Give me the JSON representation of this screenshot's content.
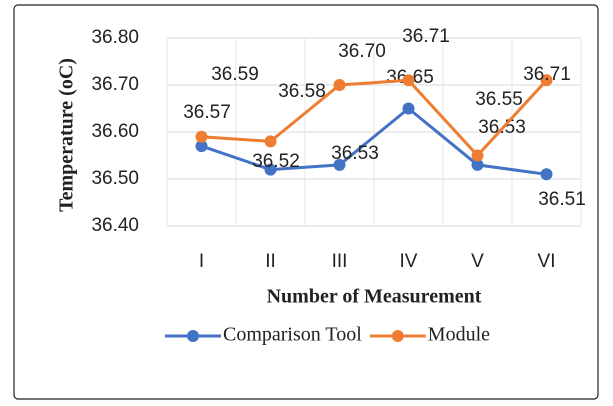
{
  "chart_data": {
    "type": "line",
    "x_label": "Number of Measurement",
    "y_label": "Temperature (oC)",
    "categories": [
      "I",
      "II",
      "III",
      "IV",
      "V",
      "VI"
    ],
    "series": [
      {
        "name": "Comparison Tool",
        "color": "#4472c4",
        "values": [
          36.57,
          36.52,
          36.53,
          36.65,
          36.53,
          36.51
        ],
        "value_labels": [
          "36.57",
          "36.52",
          "36.53",
          "36.65",
          "36.53",
          "36.51"
        ]
      },
      {
        "name": "Module",
        "color": "#ed7d31",
        "values": [
          36.59,
          36.58,
          36.7,
          36.71,
          36.55,
          36.71
        ],
        "value_labels": [
          "36.59",
          "36.58",
          "36.70",
          "36.71",
          "36.55",
          "36.71"
        ]
      }
    ],
    "ylim": [
      36.4,
      36.8
    ],
    "yticks": [
      {
        "value": 36.4,
        "label": "36.40"
      },
      {
        "value": 36.5,
        "label": "36.50"
      },
      {
        "value": 36.6,
        "label": "36.60"
      },
      {
        "value": 36.7,
        "label": "36.70"
      },
      {
        "value": 36.8,
        "label": "36.80"
      }
    ],
    "grid": true,
    "legend": "bottom"
  }
}
